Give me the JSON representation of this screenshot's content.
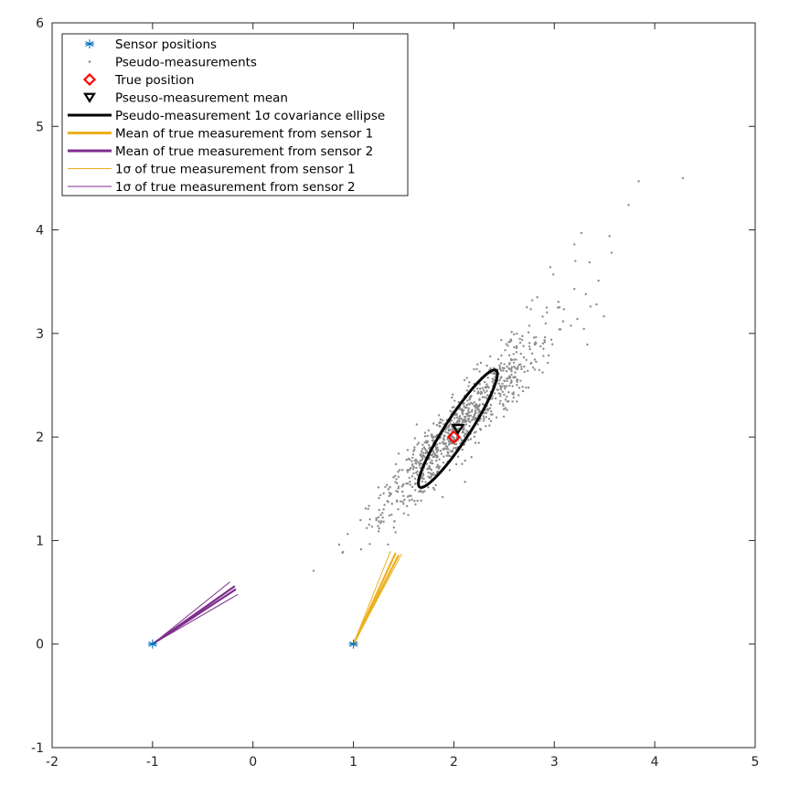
{
  "chart_data": {
    "type": "scatter",
    "xlim": [
      -2,
      5
    ],
    "ylim": [
      -1,
      6
    ],
    "x_ticks": [
      -2,
      -1,
      0,
      1,
      2,
      3,
      4,
      5
    ],
    "y_ticks": [
      -1,
      0,
      1,
      2,
      3,
      4,
      5,
      6
    ],
    "grid": false,
    "legend_placement": "top-left",
    "colors": {
      "sensor": "#0072bd",
      "pseudo": "#8c8c8c",
      "true_position": "#ff0000",
      "mean": "#000000",
      "sensor1": "#edb120",
      "sensor2": "#7e2f8e",
      "axis": "#262626"
    },
    "sensor_positions": [
      {
        "x": -1,
        "y": 0
      },
      {
        "x": 1,
        "y": 0
      }
    ],
    "true_position": {
      "x": 2,
      "y": 2
    },
    "pseudo_measurement_mean": {
      "x": 2.04,
      "y": 2.08
    },
    "pseudo_measurements_model": {
      "count": 900,
      "mean": [
        2.04,
        2.08
      ],
      "major_axis_direction_deg": 47,
      "sigma_major": 0.57,
      "sigma_minor": 0.1,
      "skew_outliers": [
        {
          "x": 4.28,
          "y": 4.5
        },
        {
          "x": 3.84,
          "y": 4.47
        },
        {
          "x": 3.74,
          "y": 4.24
        },
        {
          "x": 3.55,
          "y": 3.94
        },
        {
          "x": 3.57,
          "y": 3.78
        },
        {
          "x": 3.27,
          "y": 3.97
        },
        {
          "x": 3.2,
          "y": 3.86
        },
        {
          "x": 3.21,
          "y": 3.7
        },
        {
          "x": 3.44,
          "y": 3.51
        },
        {
          "x": 2.96,
          "y": 3.64
        },
        {
          "x": 2.99,
          "y": 3.57
        },
        {
          "x": 3.2,
          "y": 3.43
        },
        {
          "x": 3.42,
          "y": 3.28
        },
        {
          "x": 3.36,
          "y": 3.26
        },
        {
          "x": 3.23,
          "y": 3.14
        },
        {
          "x": 2.83,
          "y": 3.35
        },
        {
          "x": 2.78,
          "y": 3.32
        },
        {
          "x": 1.27,
          "y": 1.17
        },
        {
          "x": 1.38,
          "y": 1.25
        },
        {
          "x": 1.42,
          "y": 1.08
        },
        {
          "x": 1.45,
          "y": 1.52
        },
        {
          "x": 1.36,
          "y": 1.46
        },
        {
          "x": 1.53,
          "y": 1.78
        },
        {
          "x": 1.45,
          "y": 1.84
        },
        {
          "x": 1.68,
          "y": 1.6
        }
      ]
    },
    "covariance_ellipse": {
      "center": [
        2.04,
        2.08
      ],
      "semi_major": 0.68,
      "semi_minor": 0.12,
      "angle_deg": 56
    },
    "sensor1_lines": {
      "origin": {
        "x": 1,
        "y": 0
      },
      "mean": [
        {
          "x": 1.42,
          "y": 0.88
        },
        {
          "x": 1.45,
          "y": 0.86
        }
      ],
      "sigma": [
        {
          "x": 1.37,
          "y": 0.9
        },
        {
          "x": 1.48,
          "y": 0.87
        }
      ]
    },
    "sensor2_lines": {
      "origin": {
        "x": -1,
        "y": 0
      },
      "mean": [
        {
          "x": -0.18,
          "y": 0.56
        },
        {
          "x": -0.17,
          "y": 0.53
        }
      ],
      "sigma": [
        {
          "x": -0.23,
          "y": 0.6
        },
        {
          "x": -0.15,
          "y": 0.48
        }
      ]
    },
    "legend": [
      {
        "label": "Sensor positions",
        "kind": "sensor"
      },
      {
        "label": "Pseudo-measurements",
        "kind": "pseudo"
      },
      {
        "label": "True position",
        "kind": "true"
      },
      {
        "label": "Pseuso-measurement mean",
        "kind": "mean"
      },
      {
        "label": "Pseudo-measurement 1σ covariance ellipse",
        "kind": "ellipse"
      },
      {
        "label": "Mean of true measurement from sensor 1",
        "kind": "mean1"
      },
      {
        "label": "Mean of true measurement from sensor 2",
        "kind": "mean2"
      },
      {
        "label": "1σ of true measurement from sensor 1",
        "kind": "sigma1"
      },
      {
        "label": "1σ of true measurement from sensor 2",
        "kind": "sigma2"
      }
    ]
  }
}
